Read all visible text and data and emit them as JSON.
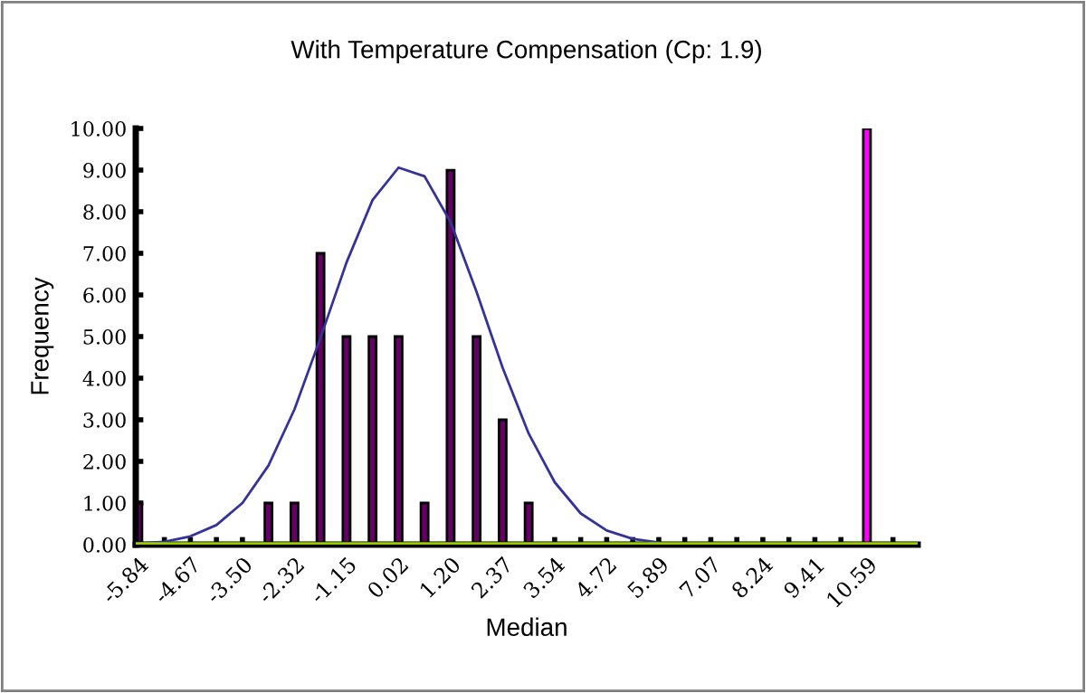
{
  "chart_data": {
    "type": "bar",
    "title": "With Temperature Compensation (Cp: 1.9)",
    "xlabel": "Median",
    "ylabel": "Frequency",
    "categories": [
      "-5.84",
      null,
      "-4.67",
      null,
      "-3.50",
      null,
      "-2.32",
      null,
      "-1.15",
      null,
      "0.02",
      null,
      "1.20",
      null,
      "2.37",
      null,
      "3.54",
      null,
      "4.72",
      null,
      "5.89",
      null,
      "7.07",
      null,
      "8.24",
      null,
      "9.41",
      null,
      "10.59",
      null
    ],
    "series": [
      {
        "type": "bar",
        "values": [
          1,
          0,
          0,
          0,
          0,
          1,
          1,
          7,
          5,
          5,
          5,
          1,
          9,
          5,
          3,
          1,
          0,
          0,
          0,
          0,
          0,
          0,
          0,
          0,
          0,
          0,
          0,
          0,
          10,
          0
        ],
        "colors": [
          "#660066",
          "#660066",
          "#660066",
          "#660066",
          "#660066",
          "#660066",
          "#660066",
          "#660066",
          "#660066",
          "#660066",
          "#660066",
          "#660066",
          "#660066",
          "#660066",
          "#660066",
          "#660066",
          "#660066",
          "#660066",
          "#660066",
          "#660066",
          "#660066",
          "#660066",
          "#660066",
          "#660066",
          "#660066",
          "#660066",
          "#660066",
          "#660066",
          "#ff00ff",
          "#660066"
        ]
      },
      {
        "type": "line",
        "color": "#333399",
        "values": [
          0.03,
          0.07,
          0.2,
          0.47,
          1.0,
          1.9,
          3.25,
          4.97,
          6.78,
          8.28,
          9.06,
          8.85,
          7.75,
          6.07,
          4.25,
          2.67,
          1.5,
          0.75,
          0.34,
          0.14,
          0.05,
          null,
          null,
          null,
          null,
          null,
          null,
          null,
          null,
          null
        ]
      }
    ],
    "ylim": [
      0,
      10
    ],
    "yticks": [
      {
        "value": 0,
        "label": "0.00"
      },
      {
        "value": 1,
        "label": "1.00"
      },
      {
        "value": 2,
        "label": "2.00"
      },
      {
        "value": 3,
        "label": "3.00"
      },
      {
        "value": 4,
        "label": "4.00"
      },
      {
        "value": 5,
        "label": "5.00"
      },
      {
        "value": 6,
        "label": "6.00"
      },
      {
        "value": 7,
        "label": "7.00"
      },
      {
        "value": 8,
        "label": "8.00"
      },
      {
        "value": 9,
        "label": "9.00"
      },
      {
        "value": 10,
        "label": "10.00"
      }
    ],
    "ref_lines": [
      {
        "axis": "y",
        "value": 0,
        "color": "#99cc00"
      }
    ],
    "grid": false,
    "legend": false
  }
}
